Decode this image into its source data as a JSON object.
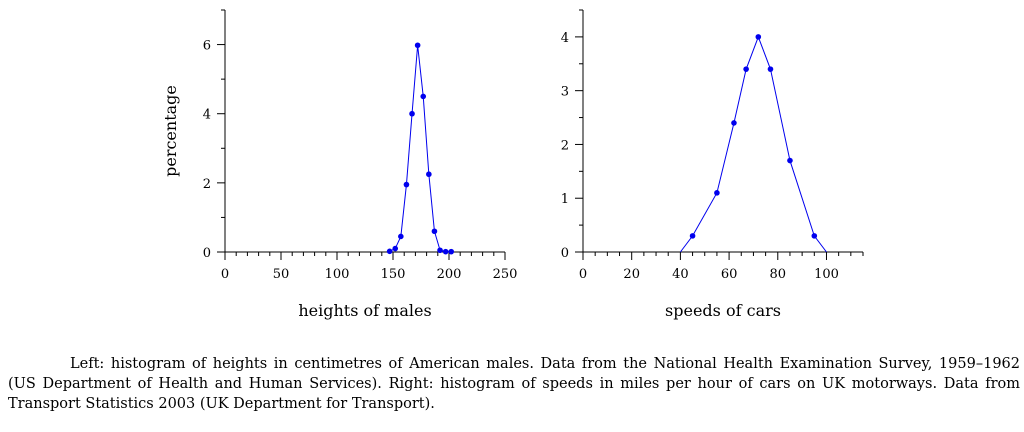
{
  "chart_data": [
    {
      "type": "line",
      "title": "",
      "xlabel": "heights of males",
      "ylabel": "percentage",
      "xlim": [
        0,
        250
      ],
      "ylim": [
        0,
        7
      ],
      "xticks": [
        0,
        50,
        100,
        150,
        200,
        250
      ],
      "xtick_labels": [
        "0",
        "50",
        "100",
        "150",
        "200",
        "250"
      ],
      "yticks": [
        0,
        2,
        4,
        6
      ],
      "ytick_labels": [
        "0",
        "2",
        "4",
        "6"
      ],
      "x_minor_step": 10,
      "y_minor_step": 1,
      "grid": false,
      "series": [
        {
          "color": "#0000ee",
          "x": [
            147,
            152,
            157,
            162,
            167,
            172,
            177,
            182,
            187,
            192,
            197,
            202
          ],
          "y": [
            0.02,
            0.1,
            0.45,
            1.95,
            4.0,
            5.98,
            4.5,
            2.25,
            0.6,
            0.05,
            0.01,
            0.01
          ],
          "markers": [
            true,
            true,
            true,
            true,
            true,
            true,
            true,
            true,
            true,
            true,
            true,
            true
          ]
        }
      ]
    },
    {
      "type": "line",
      "title": "",
      "xlabel": "speeds of cars",
      "ylabel": "",
      "xlim": [
        0,
        115
      ],
      "ylim": [
        0,
        4.5
      ],
      "xticks": [
        0,
        20,
        40,
        60,
        80,
        100
      ],
      "xtick_labels": [
        "0",
        "20",
        "40",
        "60",
        "80",
        "100"
      ],
      "yticks": [
        0,
        1,
        2,
        3,
        4
      ],
      "ytick_labels": [
        "0",
        "1",
        "2",
        "3",
        "4"
      ],
      "x_minor_step": 5,
      "y_minor_step": 0.5,
      "grid": false,
      "series": [
        {
          "color": "#0000ee",
          "x": [
            40,
            45,
            55,
            62,
            67,
            72,
            77,
            85,
            95,
            100
          ],
          "y": [
            0,
            0.3,
            1.1,
            2.4,
            3.4,
            4.0,
            3.4,
            1.7,
            0.3,
            0
          ],
          "markers": [
            false,
            true,
            true,
            true,
            true,
            true,
            true,
            true,
            true,
            false
          ]
        }
      ]
    }
  ],
  "caption": {
    "text": "Left: histogram of heights in centimetres of American males. Data from the National Health Examination Survey, 1959–1962 (US Department of Health and Human Services). Right: histogram of speeds in miles per hour of cars on UK motorways. Data from Transport Statistics 2003 (UK Department for Transport)."
  }
}
